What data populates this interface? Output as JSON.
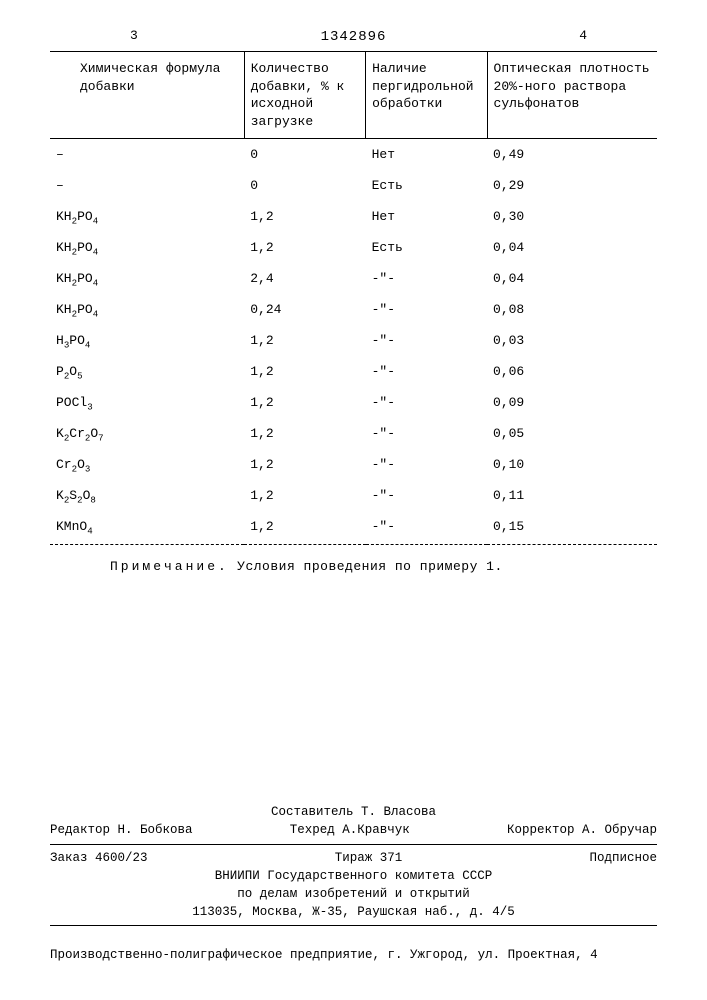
{
  "page": {
    "left_num": "3",
    "right_num": "4",
    "doc_number": "1342896"
  },
  "table": {
    "headers": {
      "formula": "Химическая формула добавки",
      "qty": "Количество добавки, % к исходной загрузке",
      "treatment": "Наличие пергидрольной обработки",
      "density": "Оптическая плотность 20%-ного раствора сульфонатов"
    },
    "rows": [
      {
        "formula_html": "–",
        "qty": "0",
        "treatment": "Нет",
        "density": "0,49"
      },
      {
        "formula_html": "–",
        "qty": "0",
        "treatment": "Есть",
        "density": "0,29"
      },
      {
        "formula_html": "KH<span class=\"sub\">2</span>PO<span class=\"sub\">4</span>",
        "qty": "1,2",
        "treatment": "Нет",
        "density": "0,30"
      },
      {
        "formula_html": "KH<span class=\"sub\">2</span>PO<span class=\"sub\">4</span>",
        "qty": "1,2",
        "treatment": "Есть",
        "density": "0,04"
      },
      {
        "formula_html": "KH<span class=\"sub\">2</span>PO<span class=\"sub\">4</span>",
        "qty": "2,4",
        "treatment": "-\"-",
        "density": "0,04"
      },
      {
        "formula_html": "KH<span class=\"sub\">2</span>PO<span class=\"sub\">4</span>",
        "qty": "0,24",
        "treatment": "-\"-",
        "density": "0,08"
      },
      {
        "formula_html": "H<span class=\"sub\">3</span>PO<span class=\"sub\">4</span>",
        "qty": "1,2",
        "treatment": "-\"-",
        "density": "0,03"
      },
      {
        "formula_html": "P<span class=\"sub\">2</span>O<span class=\"sub\">5</span>",
        "qty": "1,2",
        "treatment": "-\"-",
        "density": "0,06"
      },
      {
        "formula_html": "POCl<span class=\"sub\">3</span>",
        "qty": "1,2",
        "treatment": "-\"-",
        "density": "0,09"
      },
      {
        "formula_html": "K<span class=\"sub\">2</span>Cr<span class=\"sub\">2</span>O<span class=\"sub\">7</span>",
        "qty": "1,2",
        "treatment": "-\"-",
        "density": "0,05"
      },
      {
        "formula_html": "Cr<span class=\"sub\">2</span>O<span class=\"sub\">3</span>",
        "qty": "1,2",
        "treatment": "-\"-",
        "density": "0,10"
      },
      {
        "formula_html": "K<span class=\"sub\">2</span>S<span class=\"sub\">2</span>O<span class=\"sub\">8</span>",
        "qty": "1,2",
        "treatment": "-\"-",
        "density": "0,11"
      },
      {
        "formula_html": "KMnO<span class=\"sub\">4</span>",
        "qty": "1,2",
        "treatment": "-\"-",
        "density": "0,15"
      }
    ]
  },
  "note": {
    "label": "Примечание.",
    "text": "Условия проведения по примеру 1."
  },
  "footer": {
    "compiler": "Составитель Т. Власова",
    "editor": "Редактор Н. Бобкова",
    "tech": "Техред А.Кравчук",
    "corrector": "Корректор А. Обручар",
    "order": "Заказ 4600/23",
    "tirazh": "Тираж 371",
    "subscription": "Подписное",
    "org1": "ВНИИПИ Государственного комитета СССР",
    "org2": "по делам изобретений и открытий",
    "address": "113035, Москва, Ж-35, Раушская наб., д. 4/5",
    "bottom": "Производственно-полиграфическое предприятие, г. Ужгород, ул. Проектная, 4"
  }
}
